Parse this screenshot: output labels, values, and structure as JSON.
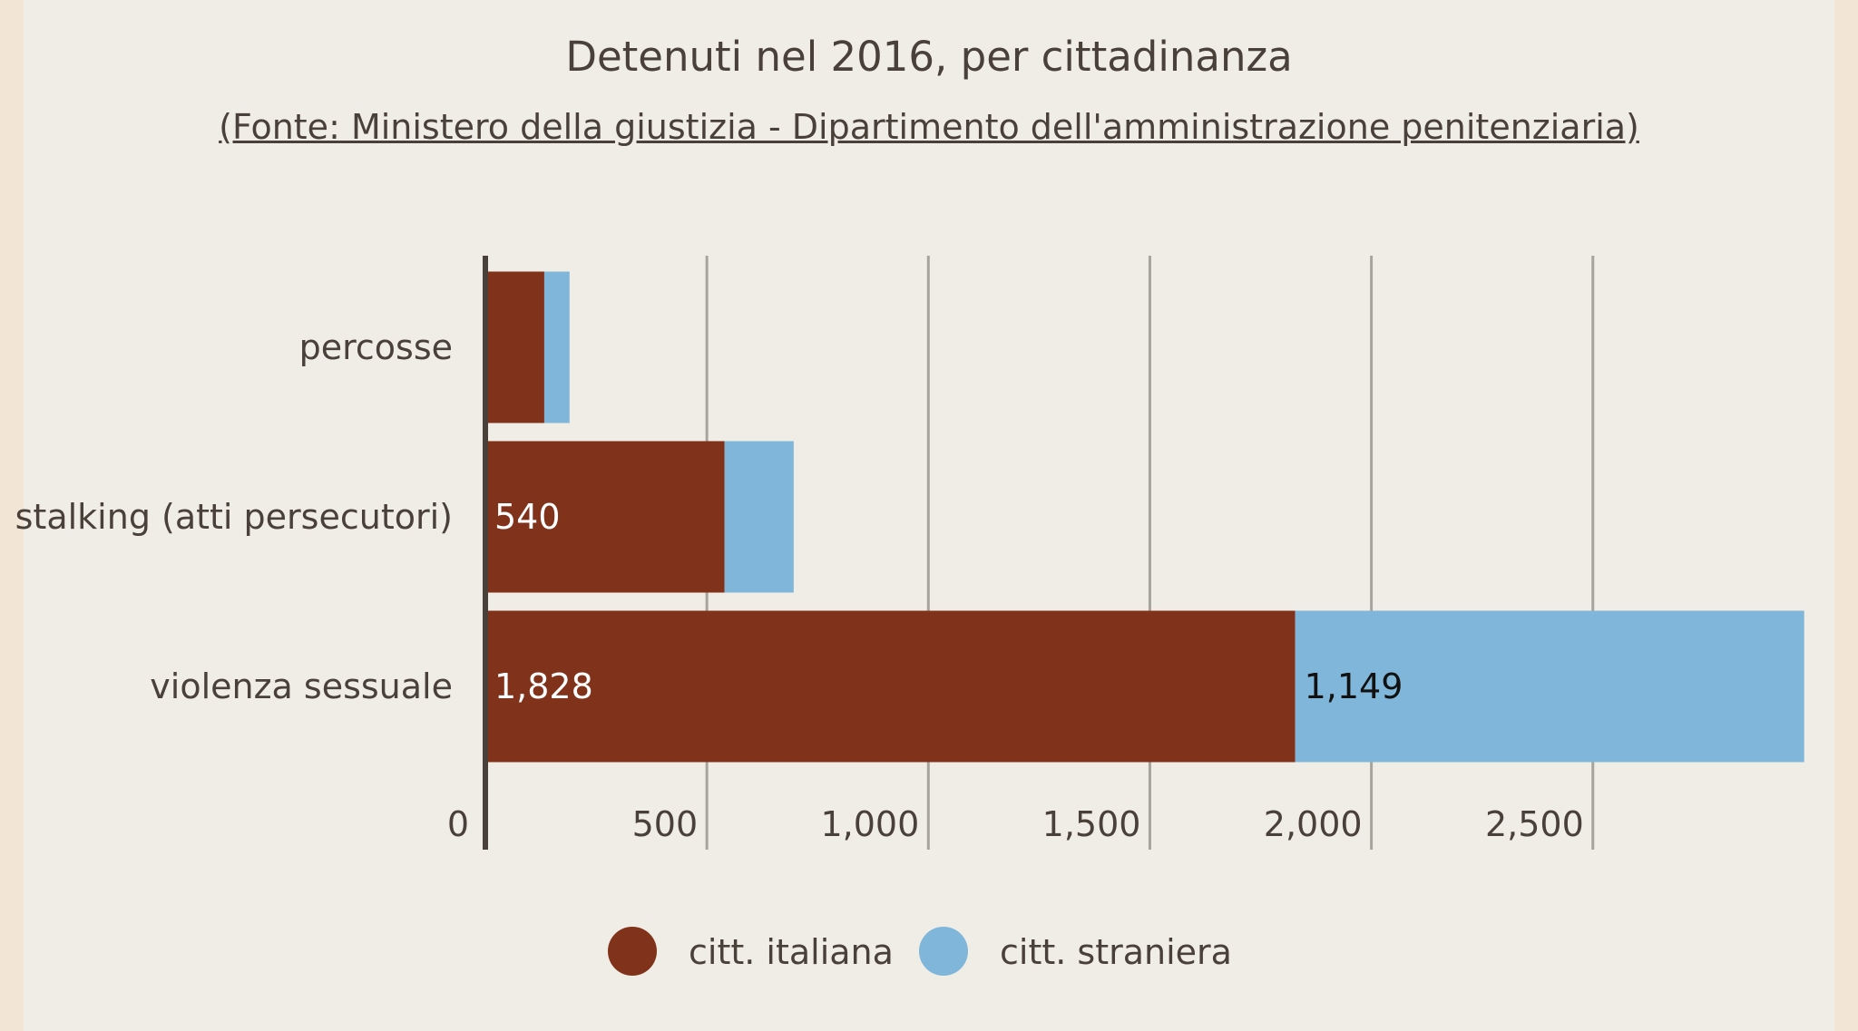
{
  "chart_data": {
    "type": "bar",
    "orientation": "horizontal",
    "stacked": true,
    "title": "Detenuti nel 2016, per cittadinanza",
    "subtitle": "(Fonte: Ministero della giustizia - Dipartimento dell'amministrazione penitenziaria)",
    "categories": [
      "percosse",
      "stalking (atti persecutori)",
      "violenza sessuale"
    ],
    "series": [
      {
        "name": "citt. italiana",
        "color": "#80321a",
        "values": [
          133,
          540,
          1828
        ],
        "labels": [
          "",
          "540",
          "1,828"
        ],
        "label_color": "#ffffff"
      },
      {
        "name": "citt. straniera",
        "color": "#80b6d9",
        "values": [
          57,
          156,
          1149
        ],
        "labels": [
          "",
          "",
          "1,149"
        ],
        "label_color": "#111111"
      }
    ],
    "xlim": [
      0,
      2977
    ],
    "xticks": [
      0,
      500,
      1000,
      1500,
      2000,
      2500
    ],
    "xtick_labels": [
      "0",
      "500",
      "1,000",
      "1,500",
      "2,000",
      "2,500"
    ],
    "grid": true,
    "legend_position": "bottom"
  }
}
